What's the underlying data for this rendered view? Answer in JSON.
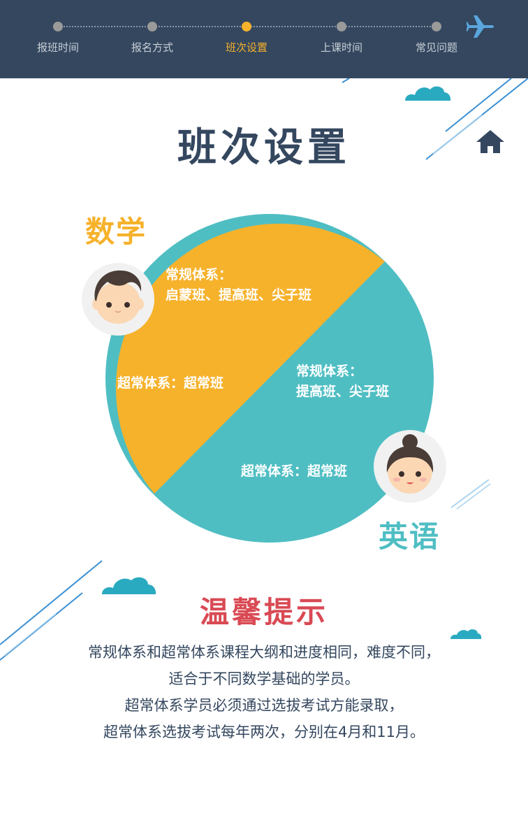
{
  "nav": {
    "steps": [
      {
        "label": "报班时间",
        "active": false
      },
      {
        "label": "报名方式",
        "active": false
      },
      {
        "label": "班次设置",
        "active": true
      },
      {
        "label": "上课时间",
        "active": false
      },
      {
        "label": "常见问题",
        "active": false
      }
    ]
  },
  "page": {
    "title": "班次设置"
  },
  "math": {
    "subject": "数学",
    "regular_title": "常规体系：",
    "regular_classes": "启蒙班、提高班、尖子班",
    "super": "超常体系：超常班"
  },
  "english": {
    "subject": "英语",
    "regular_title": "常规体系：",
    "regular_classes": "提高班、尖子班",
    "super": "超常体系：超常班"
  },
  "tips": {
    "title": "温馨提示",
    "lines": [
      "常规体系和超常体系课程大纲和进度相同，难度不同，",
      "适合于不同数学基础的学员。",
      "超常体系学员必须通过选拔考试方能录取，",
      "超常体系选拔考试每年两次，分别在4月和11月。"
    ]
  },
  "colors": {
    "header_bg": "#34475f",
    "active": "#f6b22b",
    "math": "#f6b22b",
    "english": "#4fbec3",
    "tips_title": "#d94a54",
    "cloud": "#2aaac0",
    "stripes": "#3b8fd2"
  },
  "icons": [
    "plane-icon",
    "home-icon",
    "cloud-icon",
    "boy-avatar-icon",
    "girl-avatar-icon"
  ]
}
